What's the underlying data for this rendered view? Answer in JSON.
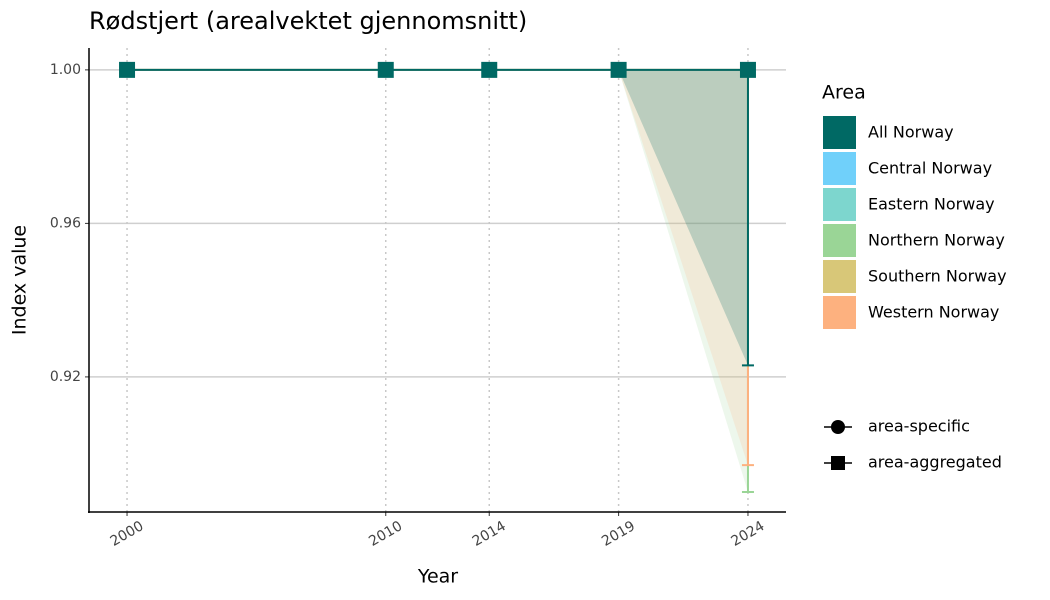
{
  "chart_data": {
    "type": "line",
    "title": "Rødstjert (arealvektet gjennomsnitt)",
    "x_label": "Year",
    "y_label": "Index value",
    "x": [
      2000,
      2010,
      2014,
      2019,
      2024
    ],
    "xlim": [
      1998.53,
      2025.47
    ],
    "xticks": [
      2000,
      2010,
      2014,
      2019,
      2024
    ],
    "ylim": [
      0.8848,
      1.0057
    ],
    "yticks": [
      0.92,
      0.96,
      {
        "value": 1,
        "label": "1.00"
      }
    ],
    "grid": true,
    "legend_title": "Area",
    "legend_position": "right",
    "series": [
      {
        "name": "All Norway",
        "color": "#006964",
        "marker": "square",
        "values": [
          1,
          1,
          1,
          1,
          1
        ],
        "lower": [
          1,
          1,
          1,
          1,
          0.923
        ],
        "upper": [
          1,
          1,
          1,
          1,
          1
        ]
      },
      {
        "name": "Central Norway",
        "color": "#70d0fa",
        "marker": "circle",
        "values": [
          null,
          null,
          null,
          null,
          null
        ]
      },
      {
        "name": "Eastern Norway",
        "color": "#7dd6ce",
        "marker": "circle",
        "values": [
          null,
          null,
          null,
          null,
          null
        ]
      },
      {
        "name": "Northern Norway",
        "color": "#9ad596",
        "marker": "circle",
        "values": [
          1,
          1,
          1,
          1,
          1
        ],
        "lower": [
          1,
          1,
          1,
          1,
          0.89
        ],
        "upper": [
          1,
          1,
          1,
          1,
          1
        ]
      },
      {
        "name": "Southern Norway",
        "color": "#d8c778",
        "marker": "circle",
        "values": [
          null,
          null,
          null,
          null,
          null
        ]
      },
      {
        "name": "Western Norway",
        "color": "#fdb17f",
        "marker": "circle",
        "values": [
          1,
          1,
          1,
          1,
          1
        ],
        "lower": [
          1,
          1,
          1,
          1,
          0.897
        ],
        "upper": [
          1,
          1,
          1,
          1,
          1
        ]
      }
    ],
    "shape_legend": [
      "area-specific",
      "area-aggregated"
    ]
  }
}
